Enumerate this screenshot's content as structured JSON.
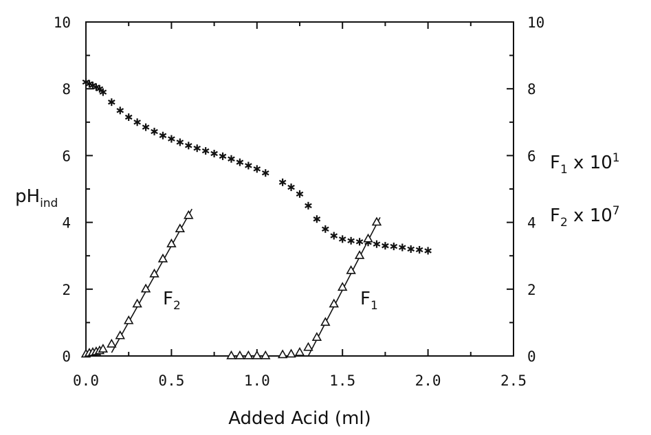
{
  "chart_data": {
    "type": "scatter",
    "xlabel": "Added Acid (ml)",
    "ylabel": {
      "main": "pH",
      "sub": "ind"
    },
    "y2labels": [
      {
        "main": "F",
        "sub": "1",
        "suffix": " x 10",
        "sup": "1"
      },
      {
        "main": "F",
        "sub": "2",
        "suffix": " x 10",
        "sup": "7"
      }
    ],
    "xlim": [
      0,
      2.5
    ],
    "ylim": [
      0,
      10
    ],
    "y2lim": [
      0,
      10
    ],
    "xticks": [
      "0.0",
      "0.5",
      "1.0",
      "1.5",
      "2.0",
      "2.5"
    ],
    "yticks": [
      "0",
      "2",
      "4",
      "6",
      "8",
      "10"
    ],
    "y2ticks": [
      "0",
      "2",
      "4",
      "6",
      "8",
      "10"
    ],
    "grid": false,
    "series": [
      {
        "key": "ph",
        "marker": "star",
        "axis": "left",
        "points": [
          [
            0.0,
            8.2
          ],
          [
            0.02,
            8.15
          ],
          [
            0.04,
            8.1
          ],
          [
            0.06,
            8.05
          ],
          [
            0.08,
            8.0
          ],
          [
            0.1,
            7.9
          ],
          [
            0.15,
            7.6
          ],
          [
            0.2,
            7.35
          ],
          [
            0.25,
            7.15
          ],
          [
            0.3,
            7.0
          ],
          [
            0.35,
            6.85
          ],
          [
            0.4,
            6.72
          ],
          [
            0.45,
            6.6
          ],
          [
            0.5,
            6.5
          ],
          [
            0.55,
            6.4
          ],
          [
            0.6,
            6.3
          ],
          [
            0.65,
            6.22
          ],
          [
            0.7,
            6.14
          ],
          [
            0.75,
            6.06
          ],
          [
            0.8,
            5.98
          ],
          [
            0.85,
            5.9
          ],
          [
            0.9,
            5.8
          ],
          [
            0.95,
            5.7
          ],
          [
            1.0,
            5.6
          ],
          [
            1.05,
            5.48
          ],
          [
            1.15,
            5.2
          ],
          [
            1.2,
            5.05
          ],
          [
            1.25,
            4.85
          ],
          [
            1.3,
            4.5
          ],
          [
            1.35,
            4.1
          ],
          [
            1.4,
            3.8
          ],
          [
            1.45,
            3.6
          ],
          [
            1.5,
            3.5
          ],
          [
            1.55,
            3.45
          ],
          [
            1.6,
            3.42
          ],
          [
            1.65,
            3.4
          ],
          [
            1.7,
            3.35
          ],
          [
            1.75,
            3.3
          ],
          [
            1.8,
            3.28
          ],
          [
            1.85,
            3.25
          ],
          [
            1.9,
            3.2
          ],
          [
            1.95,
            3.18
          ],
          [
            2.0,
            3.15
          ]
        ]
      },
      {
        "key": "f2",
        "label": {
          "main": "F",
          "sub": "2"
        },
        "marker": "triangle",
        "axis": "right",
        "points": [
          [
            0.0,
            0.05
          ],
          [
            0.02,
            0.08
          ],
          [
            0.04,
            0.1
          ],
          [
            0.06,
            0.12
          ],
          [
            0.08,
            0.15
          ],
          [
            0.1,
            0.2
          ],
          [
            0.15,
            0.35
          ],
          [
            0.2,
            0.6
          ],
          [
            0.25,
            1.05
          ],
          [
            0.3,
            1.55
          ],
          [
            0.35,
            2.0
          ],
          [
            0.4,
            2.45
          ],
          [
            0.45,
            2.9
          ],
          [
            0.5,
            3.35
          ],
          [
            0.55,
            3.8
          ],
          [
            0.6,
            4.2
          ]
        ],
        "fit": [
          [
            0.15,
            0.1
          ],
          [
            0.62,
            4.4
          ]
        ]
      },
      {
        "key": "f1",
        "label": {
          "main": "F",
          "sub": "1"
        },
        "marker": "triangle",
        "axis": "right",
        "points": [
          [
            0.85,
            0.0
          ],
          [
            0.9,
            0.0
          ],
          [
            0.95,
            0.0
          ],
          [
            1.0,
            0.0
          ],
          [
            1.05,
            0.0
          ],
          [
            1.15,
            0.03
          ],
          [
            1.2,
            0.05
          ],
          [
            1.25,
            0.1
          ],
          [
            1.3,
            0.25
          ],
          [
            1.35,
            0.55
          ],
          [
            1.4,
            1.0
          ],
          [
            1.45,
            1.55
          ],
          [
            1.5,
            2.05
          ],
          [
            1.55,
            2.55
          ],
          [
            1.6,
            3.0
          ],
          [
            1.65,
            3.5
          ],
          [
            1.7,
            4.0
          ]
        ],
        "fit": [
          [
            1.3,
            0.0
          ],
          [
            1.72,
            4.15
          ]
        ]
      }
    ]
  }
}
